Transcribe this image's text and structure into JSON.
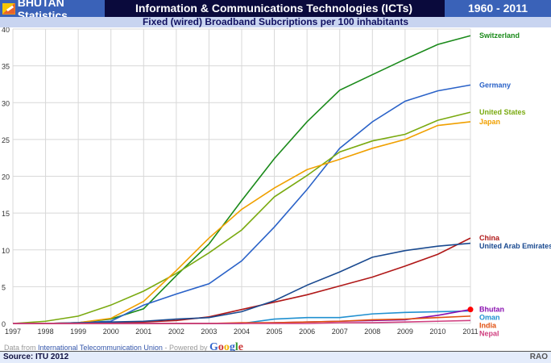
{
  "header": {
    "brand": "BHUTAN Statistics",
    "title": "Information & Communications Technologies (ICTs)",
    "years": "1960 - 2011",
    "subtitle": "Fixed (wired) Broadband Subcriptions per 100 inhabitants",
    "flag_icon": "bhutan-flag-icon"
  },
  "credit": {
    "prefix": "Data from ",
    "link": "International Telecommunication Union",
    "suffix": " - Powered by ",
    "logo": "Google"
  },
  "footer": {
    "source": "Source: ITU 2012",
    "author": "RAO"
  },
  "chart_data": {
    "type": "line",
    "title": "Fixed (wired) Broadband Subcriptions per 100 inhabitants",
    "xlabel": "",
    "ylabel": "",
    "x": [
      1997,
      1998,
      1999,
      2000,
      2001,
      2002,
      2003,
      2004,
      2005,
      2006,
      2007,
      2008,
      2009,
      2010,
      2011
    ],
    "ylim": [
      0,
      40
    ],
    "yticks": [
      0,
      5,
      10,
      15,
      20,
      25,
      30,
      35,
      40
    ],
    "grid": true,
    "legend": "right (end labels)",
    "series": [
      {
        "name": "Switzerland",
        "color": "#1a8a1a",
        "values": [
          0,
          0,
          0.1,
          0.6,
          2.0,
          6.5,
          10.8,
          16.7,
          22.4,
          27.4,
          31.7,
          33.8,
          35.9,
          37.9,
          39.1
        ]
      },
      {
        "name": "Germany",
        "color": "#2a62c8",
        "values": [
          0,
          0,
          0.1,
          0.3,
          2.5,
          4.0,
          5.4,
          8.5,
          13.1,
          18.2,
          23.8,
          27.4,
          30.2,
          31.6,
          32.4
        ]
      },
      {
        "name": "United States",
        "color": "#7aaa10",
        "values": [
          0,
          0.3,
          1.0,
          2.5,
          4.4,
          6.8,
          9.6,
          12.7,
          17.2,
          20.1,
          23.3,
          24.8,
          25.7,
          27.6,
          28.7
        ]
      },
      {
        "name": "Japan",
        "color": "#f0a000",
        "values": [
          0,
          0,
          0.1,
          0.7,
          3.0,
          7.2,
          11.6,
          15.5,
          18.4,
          20.9,
          22.3,
          23.8,
          25.0,
          26.9,
          27.4
        ]
      },
      {
        "name": "China",
        "color": "#b01818",
        "values": [
          0,
          0,
          0,
          0.1,
          0.2,
          0.4,
          0.9,
          1.9,
          2.9,
          3.9,
          5.1,
          6.3,
          7.8,
          9.4,
          11.6
        ]
      },
      {
        "name": "United Arab Emirates",
        "color": "#1a4a90",
        "values": [
          0,
          0,
          0.1,
          0.2,
          0.3,
          0.6,
          0.8,
          1.6,
          3.1,
          5.2,
          7.0,
          9.0,
          9.9,
          10.5,
          10.9
        ]
      },
      {
        "name": "Oman",
        "color": "#2090d0",
        "values": [
          0,
          0,
          0,
          0,
          0,
          0,
          0,
          0,
          0.6,
          0.8,
          0.8,
          1.3,
          1.5,
          1.6,
          1.7
        ]
      },
      {
        "name": "Bhutan",
        "color": "#8a10b0",
        "values": [
          0,
          0,
          0,
          0,
          0,
          0,
          0,
          0,
          0.1,
          0.2,
          0.3,
          0.4,
          0.5,
          1.1,
          1.9
        ]
      },
      {
        "name": "India",
        "color": "#e05010",
        "values": [
          0,
          0,
          0,
          0,
          0,
          0,
          0,
          0.1,
          0.1,
          0.2,
          0.3,
          0.5,
          0.6,
          0.8,
          1.0
        ]
      },
      {
        "name": "Nepal",
        "color": "#d04080",
        "values": [
          0,
          0,
          0,
          0,
          0,
          0,
          0,
          0,
          0,
          0,
          0.1,
          0.1,
          0.2,
          0.3,
          0.4
        ]
      }
    ],
    "marker": {
      "series": "Bhutan",
      "x": 2011,
      "color": "#ff0000"
    }
  }
}
